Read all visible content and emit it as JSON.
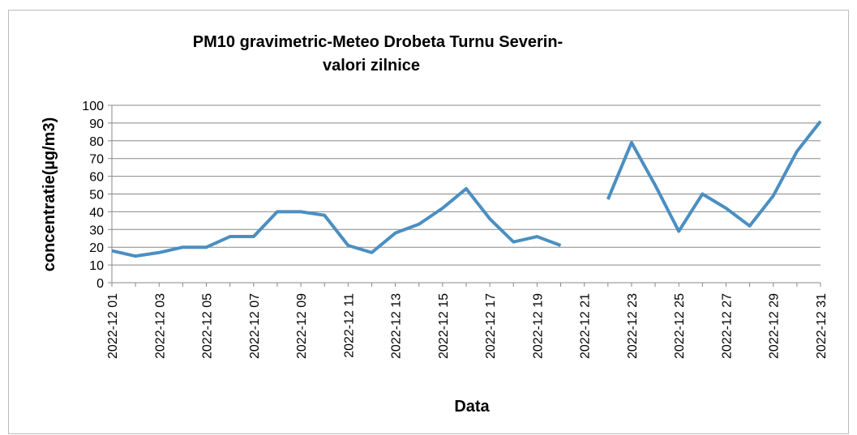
{
  "chart_data": {
    "type": "line",
    "title": [
      "PM10 gravimetric-Meteo Drobeta Turnu Severin-",
      "valori zilnice"
    ],
    "x_label": "Data",
    "y_label": "concentratie(µg/m3)",
    "categories": [
      "2022-12 01",
      null,
      "2022-12 03",
      null,
      "2022-12 05",
      null,
      "2022-12 07",
      null,
      "2022-12 09",
      null,
      "2022-12 11",
      null,
      "2022-12 13",
      null,
      "2022-12 15",
      null,
      "2022-12 17",
      null,
      "2022-12 19",
      null,
      "2022-12 21",
      null,
      "2022-12 23",
      null,
      "2022-12 25",
      null,
      "2022-12 27",
      null,
      "2022-12 29",
      null,
      "2022-12 31"
    ],
    "series": [
      {
        "name": "PM10",
        "color": "#4a8fc2",
        "values": [
          18,
          15,
          17,
          20,
          20,
          26,
          26,
          40,
          40,
          38,
          21,
          17,
          28,
          33,
          42,
          53,
          36,
          23,
          26,
          21,
          null,
          47,
          79,
          55,
          29,
          50,
          42,
          32,
          49,
          74,
          91
        ]
      }
    ],
    "ylim": [
      0,
      100
    ],
    "yticks": [
      0,
      10,
      20,
      30,
      40,
      50,
      60,
      70,
      80,
      90,
      100
    ],
    "grid": true
  }
}
